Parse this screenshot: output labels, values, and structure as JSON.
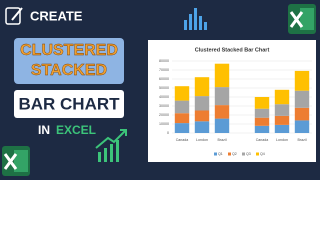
{
  "header": {
    "create": "CREATE",
    "line1": "CLUSTERED",
    "line2": "STACKED",
    "line3": "BAR CHART",
    "in": "IN",
    "excel": "EXCEL"
  },
  "chart_data": {
    "type": "stacked_bar",
    "title": "Clustered Stacked Bar Chart",
    "categories": [
      "Canada",
      "London",
      "Brazil",
      null,
      "Canada",
      "London",
      "Brazil"
    ],
    "series": [
      {
        "name": "Q1",
        "color": "#5b9bd5",
        "values": [
          11000,
          13000,
          16000,
          null,
          8000,
          9000,
          14000
        ]
      },
      {
        "name": "Q2",
        "color": "#ed7d31",
        "values": [
          11000,
          12000,
          15000,
          null,
          9000,
          10000,
          14000
        ]
      },
      {
        "name": "Q3",
        "color": "#a5a5a5",
        "values": [
          14000,
          16000,
          20000,
          null,
          10000,
          13000,
          19000
        ]
      },
      {
        "name": "Q4",
        "color": "#ffc000",
        "values": [
          16000,
          21000,
          26000,
          null,
          13000,
          16000,
          22000
        ]
      }
    ],
    "ylim": [
      0,
      80000
    ],
    "yticks": [
      0,
      10000,
      20000,
      30000,
      40000,
      50000,
      60000,
      70000,
      80000
    ],
    "grid": true,
    "legend": "bottom"
  }
}
